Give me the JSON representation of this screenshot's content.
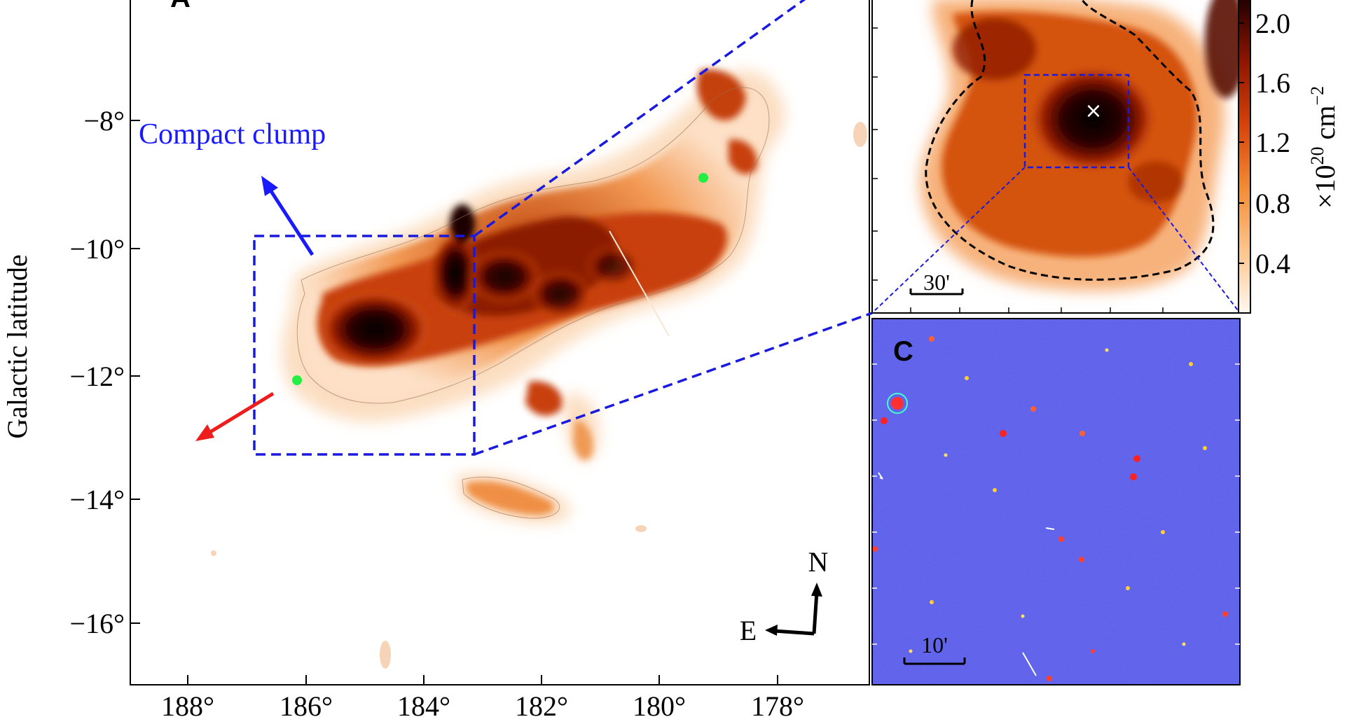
{
  "figure": {
    "panel_a": {
      "letter": "A",
      "annotation_compact_clump": "Compact clump",
      "ylabel": "Galactic latitude",
      "x_ticks": [
        "188°",
        "186°",
        "184°",
        "182°",
        "180°",
        "178°"
      ],
      "y_ticks": [
        "−8°",
        "−10°",
        "−12°",
        "−14°",
        "−16°"
      ],
      "compass_north": "N",
      "compass_east": "E",
      "arrow_blue_color": "#1a1aff",
      "arrow_red_color": "#ee1c1c",
      "marker_color": "#22ee44",
      "box_color": "#1a1adf"
    },
    "panel_b": {
      "scalebar_label": "30'",
      "marker_label": "×"
    },
    "panel_c": {
      "letter": "C",
      "scalebar_label": "10'"
    },
    "colorbar": {
      "ticks": [
        "0.4",
        "0.8",
        "1.2",
        "1.6",
        "2.0"
      ],
      "label": "×10",
      "label_exp": "20",
      "label_unit": " cm",
      "label_unit_exp": "−2"
    }
  }
}
